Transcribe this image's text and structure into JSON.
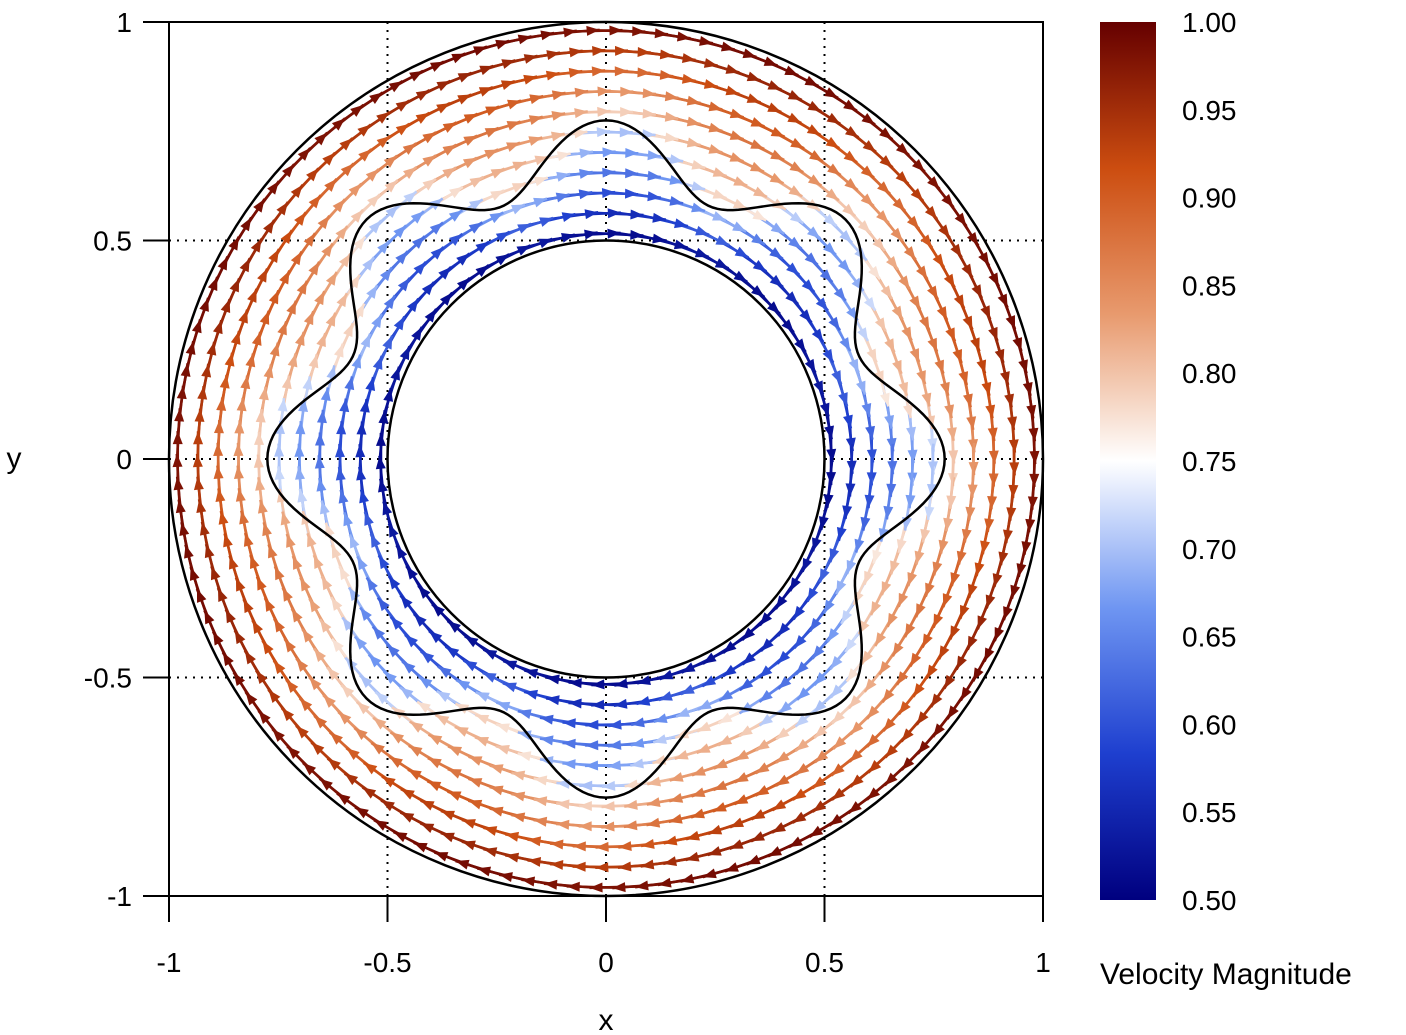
{
  "chart_data": {
    "type": "vector-field",
    "xlabel": "x",
    "ylabel": "y",
    "xlim": [
      -1,
      1
    ],
    "ylim": [
      -1,
      1
    ],
    "xticks": [
      {
        "value": -1,
        "label": "-1"
      },
      {
        "value": -0.5,
        "label": "-0.5"
      },
      {
        "value": 0,
        "label": "0"
      },
      {
        "value": 0.5,
        "label": "0.5"
      },
      {
        "value": 1,
        "label": "1"
      }
    ],
    "yticks": [
      {
        "value": 1,
        "label": "1"
      },
      {
        "value": 0.5,
        "label": "0.5"
      },
      {
        "value": 0,
        "label": "0"
      },
      {
        "value": -0.5,
        "label": "-0.5"
      },
      {
        "value": -1,
        "label": "-1"
      }
    ],
    "grid": "dotted at ±0.5 and 0",
    "domain": {
      "inner_radius": 0.5,
      "outer_radius": 1.0,
      "interface_mean_radius": 0.7,
      "interface_amplitude": 0.075,
      "interface_lobes": 8
    },
    "flow": {
      "direction": "clockwise",
      "inner_region_speed": [
        0.5,
        0.72
      ],
      "outer_region_speed": [
        0.76,
        1.0
      ]
    },
    "colorbar": {
      "label": "Velocity Magnitude",
      "min": 0.5,
      "max": 1.0,
      "colormap": "blue-white-red",
      "stops": [
        "#00007f",
        "#1e3fcf",
        "#6f96f2",
        "#ffffff",
        "#e89a6e",
        "#cc4d10",
        "#650000"
      ],
      "ticks": [
        "1.00",
        "0.95",
        "0.90",
        "0.85",
        "0.80",
        "0.75",
        "0.70",
        "0.65",
        "0.60",
        "0.55",
        "0.50"
      ]
    }
  }
}
